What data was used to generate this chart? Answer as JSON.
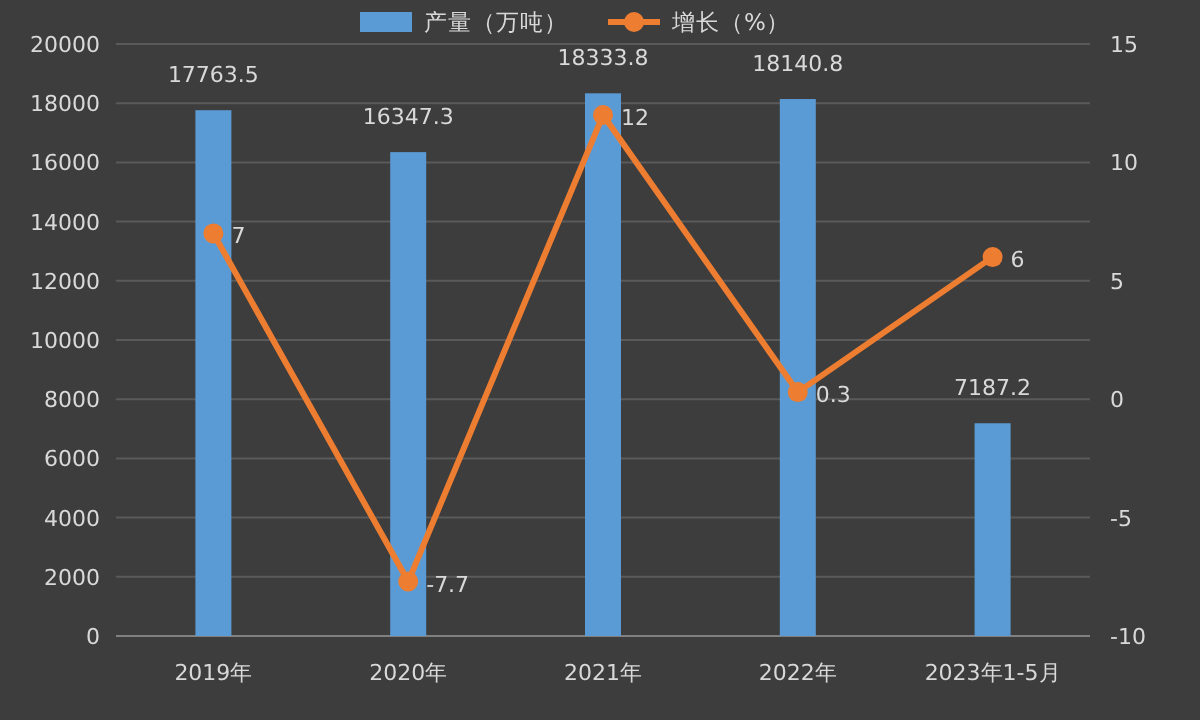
{
  "chart_data": {
    "type": "bar",
    "categories": [
      "2019年",
      "2020年",
      "2021年",
      "2022年",
      "2023年1-5月"
    ],
    "series": [
      {
        "name": "产量（万吨）",
        "color": "#5b9bd5",
        "values": [
          17763.5,
          16347.3,
          18333.8,
          18140.8,
          7187.2
        ]
      },
      {
        "name": "增长（%）",
        "type": "line",
        "axis": "y2",
        "color": "#ed7d31",
        "values": [
          7,
          -7.7,
          12,
          0.3,
          6
        ]
      }
    ],
    "ylim": [
      0,
      20000
    ],
    "yticks": [
      0,
      2000,
      4000,
      6000,
      8000,
      10000,
      12000,
      14000,
      16000,
      18000,
      20000
    ],
    "y2lim": [
      -10,
      15
    ],
    "y2ticks": [
      -10,
      -5,
      0,
      5,
      10,
      15
    ],
    "grid": "y",
    "legend": "top",
    "data_labels": true,
    "marker": "circle"
  }
}
